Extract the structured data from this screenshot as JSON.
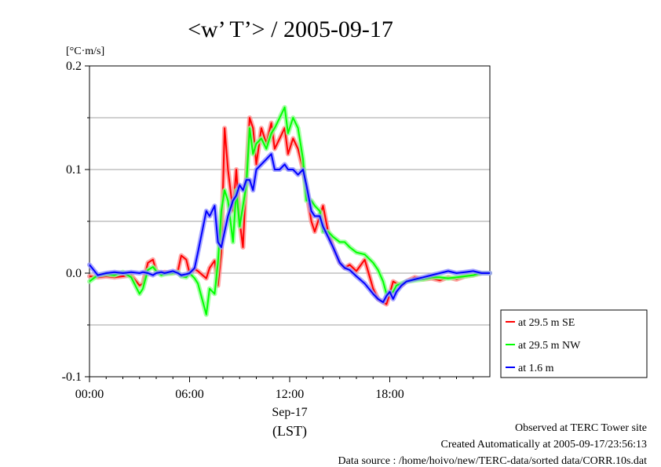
{
  "chart_data": {
    "type": "line",
    "title": "<w’ T’> / 2005-09-17",
    "ylabel": "[°C·m/s]",
    "xlabel": "(LST)",
    "x_date_label": "Sep-17",
    "ylim": [
      -0.1,
      0.2
    ],
    "xlim": [
      "00:00",
      "24:00"
    ],
    "y_ticks": [
      "0.2",
      "0.1",
      "0.0",
      "-0.1"
    ],
    "y_tick_values": [
      0.2,
      0.1,
      0.0,
      -0.1
    ],
    "x_ticks": [
      "00:00",
      "06:00",
      "12:00",
      "18:00"
    ],
    "x_tick_values": [
      0,
      6,
      12,
      18
    ],
    "grid": true,
    "legend_position": "bottom-right",
    "series": [
      {
        "name": "at 29.5 m SE",
        "color": "#ff0000",
        "x": [
          0,
          0.5,
          1,
          1.5,
          2,
          2.5,
          3,
          3.2,
          3.5,
          3.8,
          4,
          4.3,
          4.5,
          5,
          5.3,
          5.5,
          5.8,
          6,
          6.3,
          6.5,
          7,
          7.2,
          7.5,
          7.7,
          7.9,
          8.1,
          8.3,
          8.6,
          8.8,
          9,
          9.2,
          9.4,
          9.6,
          9.8,
          10,
          10.3,
          10.6,
          10.9,
          11.1,
          11.4,
          11.7,
          11.9,
          12.2,
          12.5,
          12.8,
          13,
          13.3,
          13.5,
          13.8,
          14,
          14.3,
          14.6,
          15,
          15.3,
          15.6,
          16,
          16.5,
          17,
          17.3,
          17.6,
          17.8,
          18,
          18.2,
          18.4,
          18.7,
          19,
          19.5,
          20,
          20.5,
          21,
          21.5,
          22,
          22.5,
          23,
          23.5,
          24
        ],
        "y": [
          -0.003,
          -0.004,
          -0.003,
          -0.004,
          -0.003,
          -0.002,
          -0.012,
          -0.01,
          0.01,
          0.013,
          0.002,
          0.0,
          0.001,
          0.0,
          0.002,
          0.017,
          0.013,
          0.0,
          0.004,
          0.002,
          -0.005,
          0.005,
          0.012,
          -0.012,
          0.02,
          0.14,
          0.1,
          0.06,
          0.1,
          0.05,
          0.025,
          0.095,
          0.15,
          0.14,
          0.105,
          0.14,
          0.125,
          0.145,
          0.12,
          0.13,
          0.14,
          0.115,
          0.13,
          0.12,
          0.1,
          0.08,
          0.05,
          0.04,
          0.055,
          0.065,
          0.04,
          0.025,
          0.01,
          0.005,
          0.008,
          0.002,
          0.013,
          -0.015,
          -0.025,
          -0.028,
          -0.03,
          -0.02,
          -0.008,
          -0.01,
          -0.012,
          -0.008,
          -0.004,
          -0.006,
          -0.005,
          -0.007,
          -0.004,
          -0.006,
          -0.003,
          -0.002,
          0.0,
          0.0
        ]
      },
      {
        "name": "at 29.5 m NW",
        "color": "#00ff00",
        "x": [
          0,
          0.5,
          1,
          1.5,
          2,
          2.5,
          3,
          3.2,
          3.5,
          3.8,
          4,
          4.3,
          4.5,
          5,
          5.3,
          5.5,
          5.8,
          6,
          6.3,
          6.5,
          7,
          7.2,
          7.5,
          7.7,
          7.9,
          8.1,
          8.3,
          8.6,
          8.8,
          9,
          9.2,
          9.4,
          9.6,
          9.8,
          10,
          10.3,
          10.6,
          10.9,
          11.1,
          11.4,
          11.7,
          11.9,
          12.2,
          12.5,
          12.8,
          13,
          13.3,
          13.5,
          13.8,
          14,
          14.3,
          14.6,
          15,
          15.3,
          15.6,
          16,
          16.5,
          17,
          17.3,
          17.6,
          17.8,
          18,
          18.2,
          18.4,
          18.7,
          19,
          19.5,
          20,
          20.5,
          21,
          21.5,
          22,
          22.5,
          23,
          23.5,
          24
        ],
        "y": [
          -0.008,
          -0.002,
          -0.001,
          -0.002,
          0.001,
          -0.004,
          -0.02,
          -0.015,
          0.003,
          0.006,
          0.002,
          -0.002,
          -0.001,
          0.0,
          0.001,
          -0.003,
          -0.004,
          0.0,
          -0.005,
          -0.01,
          -0.04,
          -0.015,
          -0.02,
          0.01,
          0.06,
          0.08,
          0.07,
          0.03,
          0.08,
          0.045,
          0.065,
          0.085,
          0.14,
          0.115,
          0.125,
          0.13,
          0.12,
          0.135,
          0.14,
          0.15,
          0.16,
          0.135,
          0.15,
          0.14,
          0.11,
          0.07,
          0.07,
          0.065,
          0.06,
          0.04,
          0.04,
          0.035,
          0.03,
          0.03,
          0.025,
          0.02,
          0.018,
          0.01,
          0.003,
          -0.008,
          -0.02,
          -0.02,
          -0.018,
          -0.012,
          -0.01,
          -0.008,
          -0.007,
          -0.006,
          -0.004,
          -0.004,
          -0.005,
          -0.004,
          -0.003,
          -0.002,
          0.0,
          0.0
        ]
      },
      {
        "name": "at 1.6 m",
        "color": "#0000ff",
        "x": [
          0,
          0.5,
          1,
          1.5,
          2,
          2.5,
          3,
          3.2,
          3.5,
          3.8,
          4,
          4.3,
          4.5,
          5,
          5.3,
          5.5,
          5.8,
          6,
          6.3,
          6.5,
          7,
          7.2,
          7.5,
          7.7,
          7.9,
          8.1,
          8.3,
          8.6,
          8.8,
          9,
          9.2,
          9.4,
          9.6,
          9.8,
          10,
          10.3,
          10.6,
          10.9,
          11.1,
          11.4,
          11.7,
          11.9,
          12.2,
          12.5,
          12.8,
          13,
          13.3,
          13.5,
          13.8,
          14,
          14.3,
          14.6,
          15,
          15.3,
          15.6,
          16,
          16.5,
          17,
          17.3,
          17.6,
          17.8,
          18,
          18.2,
          18.4,
          18.7,
          19,
          19.5,
          20,
          20.5,
          21,
          21.5,
          22,
          22.5,
          23,
          23.5,
          24
        ],
        "y": [
          0.008,
          -0.002,
          0.0,
          0.001,
          0.0,
          0.001,
          0.0,
          0.001,
          0.0,
          -0.002,
          0.0,
          0.001,
          0.0,
          0.002,
          0.0,
          -0.002,
          -0.001,
          0.0,
          0.005,
          0.02,
          0.06,
          0.055,
          0.065,
          0.03,
          0.025,
          0.04,
          0.055,
          0.07,
          0.075,
          0.085,
          0.08,
          0.09,
          0.09,
          0.08,
          0.1,
          0.105,
          0.11,
          0.115,
          0.1,
          0.1,
          0.105,
          0.1,
          0.1,
          0.095,
          0.1,
          0.085,
          0.06,
          0.055,
          0.055,
          0.045,
          0.035,
          0.025,
          0.01,
          0.005,
          0.003,
          -0.003,
          -0.01,
          -0.02,
          -0.025,
          -0.028,
          -0.022,
          -0.018,
          -0.025,
          -0.018,
          -0.012,
          -0.008,
          -0.006,
          -0.004,
          -0.002,
          0.0,
          0.002,
          0.0,
          0.001,
          0.002,
          0.0,
          0.0
        ]
      }
    ]
  },
  "footer": {
    "line1": "Observed at TERC Tower site",
    "line2": "Created Automatically at 2005-09-17/23:56:13",
    "line3": "Data source : /home/hoivo/new/TERC-data/sorted  data/CORR.10s.dat"
  }
}
